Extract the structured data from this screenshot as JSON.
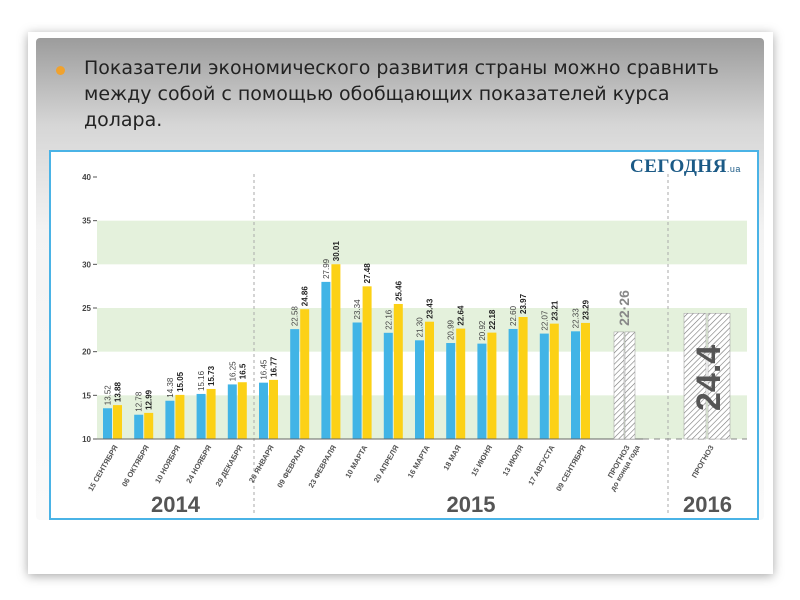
{
  "heading": {
    "text": "Показатели экономического развития страны можно сравнить между собой с помощью обобщающих показателей курса долара."
  },
  "brand": {
    "name": "СЕГОДНЯ",
    "suffix": ".ua"
  },
  "colors": {
    "blue": "#41b4e6",
    "yellow": "#fcd116",
    "band": "#e4f1dc",
    "accent": "#f0a22e",
    "frame": "#4ab3e6"
  },
  "chart_data": {
    "type": "bar",
    "title": "",
    "xlabel": "",
    "ylabel": "",
    "ylim": [
      10,
      40
    ],
    "yticks": [
      "10",
      "15",
      "20",
      "25",
      "30",
      "35",
      "40"
    ],
    "categories": [
      "15 СЕНТЯБРЯ",
      "06 ОКТЯБРЯ",
      "10 НОЯБРЯ",
      "24 НОЯБРЯ",
      "29 ДЕКАБРЯ",
      "26 ЯНВАРЯ",
      "09 ФЕВРАЛЯ",
      "23 ФЕВРАЛЯ",
      "10 МАРТА",
      "20 АПРЕЛЯ",
      "16 МАРТА",
      "18 МАЯ",
      "15 ИЮНЯ",
      "13 ИЮЛЯ",
      "17 АВГУСТА",
      "09 СЕНТЯБРЯ"
    ],
    "series": [
      {
        "name": "blue",
        "values": [
          13.52,
          12.78,
          14.38,
          15.16,
          16.25,
          16.45,
          22.58,
          27.99,
          23.34,
          22.16,
          21.3,
          20.99,
          20.92,
          22.6,
          22.07,
          22.33
        ],
        "labels": [
          "13.52",
          "12.78",
          "14.38",
          "15.16",
          "16.25",
          "16.45",
          "22.58",
          "27.99",
          "23.34",
          "22.16",
          "21.30",
          "20.99",
          "20.92",
          "22.60",
          "22.07",
          "22.33"
        ]
      },
      {
        "name": "yellow",
        "values": [
          13.88,
          12.99,
          15.05,
          15.73,
          16.5,
          16.77,
          24.86,
          30.01,
          27.48,
          25.46,
          23.43,
          22.64,
          22.18,
          23.97,
          23.21,
          23.29
        ],
        "labels": [
          "13.88",
          "12.99",
          "15.05",
          "15.73",
          "16.5",
          "16.77",
          "24.86",
          "30.01",
          "27.48",
          "25.46",
          "23.43",
          "22.64",
          "22.18",
          "23.97",
          "23.21",
          "23.29"
        ]
      }
    ],
    "forecasts": [
      {
        "label": "ПРОГНОЗ",
        "sublabel": "до конца года",
        "value": 22.26,
        "value_label": "22·26"
      },
      {
        "label": "ПРОГНОЗ",
        "sublabel": "",
        "value": 24.4,
        "value_label": "24.4"
      }
    ],
    "year_groups": [
      {
        "label": "2014",
        "count": 5
      },
      {
        "label": "2015",
        "count": 11
      },
      {
        "label": "2016",
        "count": 1
      }
    ]
  }
}
